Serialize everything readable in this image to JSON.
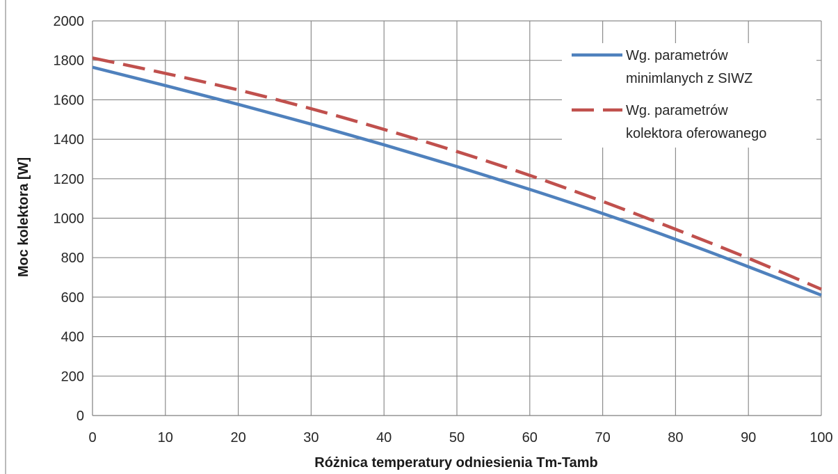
{
  "chart_data": {
    "type": "line",
    "title": "",
    "xlabel": "Różnica temperatury odniesienia Tm-Tamb",
    "ylabel": "Moc kolektora [W]",
    "xlim": [
      0,
      100
    ],
    "ylim": [
      0,
      2000
    ],
    "x_ticks": [
      0,
      10,
      20,
      30,
      40,
      50,
      60,
      70,
      80,
      90,
      100
    ],
    "y_ticks": [
      0,
      200,
      400,
      600,
      800,
      1000,
      1200,
      1400,
      1600,
      1800,
      2000
    ],
    "x_tick_labels": [
      "0",
      "10",
      "20",
      "30",
      "40",
      "50",
      "60",
      "70",
      "80",
      "90",
      "100"
    ],
    "y_tick_labels": [
      "0",
      "200",
      "400",
      "600",
      "800",
      "1000",
      "1200",
      "1400",
      "1600",
      "1800",
      "2000"
    ],
    "grid": true,
    "legend_position": "top-right",
    "series": [
      {
        "name_lines": [
          "Wg. parametrów",
          "minimlanych z SIWZ"
        ],
        "color": "#4f81bd",
        "style": "solid",
        "x": [
          0,
          10,
          20,
          30,
          40,
          50,
          60,
          70,
          80,
          90,
          100
        ],
        "y": [
          1765,
          1672,
          1577,
          1477,
          1372,
          1262,
          1146,
          1024,
          893,
          754,
          610
        ]
      },
      {
        "name_lines": [
          "Wg. parametrów",
          "kolektora oferowanego"
        ],
        "color": "#c0504d",
        "style": "dashed",
        "x": [
          0,
          10,
          20,
          30,
          40,
          50,
          60,
          70,
          80,
          90,
          100
        ],
        "y": [
          1812,
          1734,
          1650,
          1555,
          1450,
          1338,
          1217,
          1085,
          944,
          797,
          640
        ]
      }
    ]
  }
}
